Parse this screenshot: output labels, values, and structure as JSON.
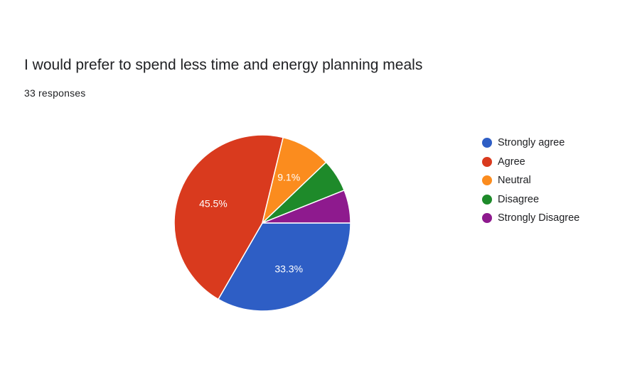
{
  "header": {
    "title": "I would prefer to spend less time and energy planning meals",
    "responses": "33 responses"
  },
  "chart_data": {
    "type": "pie",
    "title": "I would prefer to spend less time and energy planning meals",
    "categories": [
      "Strongly agree",
      "Agree",
      "Neutral",
      "Disagree",
      "Strongly Disagree"
    ],
    "values": [
      11,
      15,
      3,
      2,
      2
    ],
    "percent_labels": [
      "33.3%",
      "45.5%",
      "9.1%",
      "",
      ""
    ],
    "colors": [
      "#2e5ec5",
      "#d93a1e",
      "#fb8c1e",
      "#1e8a2a",
      "#8e1a8e"
    ],
    "legend_position": "right",
    "start": "3 o'clock, clockwise"
  }
}
